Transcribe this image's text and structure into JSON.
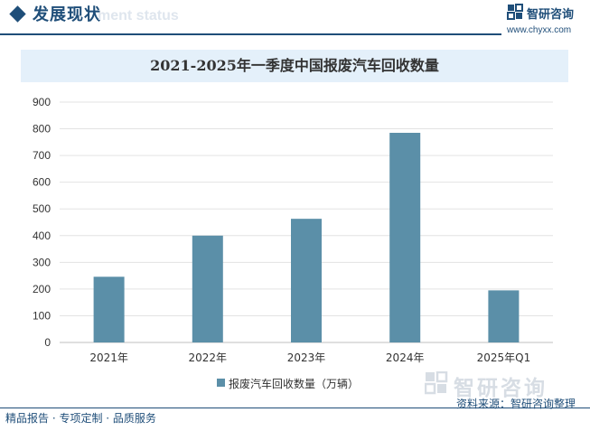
{
  "header": {
    "title": "发展现状",
    "subtitle_en": "ment status",
    "accent_color": "#1f4e79"
  },
  "logo": {
    "name": "智研咨询",
    "url": "www.chyxx.com",
    "icon": "zhiyan-logo-icon"
  },
  "chart_data": {
    "type": "bar",
    "title": "2021-2025年一季度中国报废汽车回收数量",
    "categories": [
      "2021年",
      "2022年",
      "2023年",
      "2024年",
      "2025年Q1"
    ],
    "series": [
      {
        "name": "报废汽车回收数量（万辆）",
        "values": [
          246,
          400,
          463,
          785,
          195
        ],
        "color": "#5b8fa8"
      }
    ],
    "xlabel": "",
    "ylabel": "",
    "ylim": [
      0,
      900
    ],
    "yticks": [
      0,
      100,
      200,
      300,
      400,
      500,
      600,
      700,
      800,
      900
    ],
    "grid": true,
    "legend_position": "bottom-center"
  },
  "watermark": {
    "text": "智研咨询"
  },
  "source": "资料来源：智研咨询整理",
  "footer": "精品报告 · 专项定制 · 品质服务"
}
